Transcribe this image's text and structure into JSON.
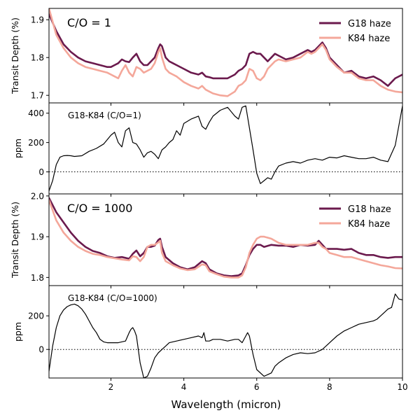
{
  "chart_data": [
    {
      "type": "line",
      "panel": "top",
      "annotation": "C/O = 1",
      "ylabel": "Transit Depth (%)",
      "xlim": [
        0.3,
        10.0
      ],
      "ylim": [
        1.68,
        1.93
      ],
      "yticks": [
        "1.7",
        "1.8",
        "1.9"
      ],
      "legend_position": "top-right",
      "series": [
        {
          "name": "G18 haze",
          "color": "#6b1a4d",
          "x": [
            0.3,
            0.5,
            0.7,
            0.9,
            1.1,
            1.3,
            1.5,
            1.7,
            1.9,
            2.0,
            2.1,
            2.2,
            2.3,
            2.4,
            2.5,
            2.6,
            2.7,
            2.8,
            2.9,
            3.0,
            3.1,
            3.2,
            3.3,
            3.35,
            3.4,
            3.5,
            3.6,
            3.7,
            3.8,
            4.0,
            4.2,
            4.4,
            4.5,
            4.6,
            4.7,
            4.8,
            5.0,
            5.2,
            5.4,
            5.5,
            5.6,
            5.7,
            5.8,
            5.9,
            6.0,
            6.1,
            6.2,
            6.3,
            6.4,
            6.5,
            6.6,
            6.8,
            7.0,
            7.2,
            7.4,
            7.5,
            7.6,
            7.7,
            7.8,
            7.9,
            8.0,
            8.2,
            8.4,
            8.6,
            8.8,
            9.0,
            9.2,
            9.4,
            9.6,
            9.8,
            10.0
          ],
          "y": [
            1.915,
            1.87,
            1.835,
            1.815,
            1.8,
            1.79,
            1.785,
            1.78,
            1.775,
            1.775,
            1.78,
            1.785,
            1.795,
            1.79,
            1.788,
            1.8,
            1.81,
            1.79,
            1.78,
            1.78,
            1.79,
            1.8,
            1.825,
            1.835,
            1.83,
            1.8,
            1.79,
            1.785,
            1.78,
            1.77,
            1.76,
            1.755,
            1.76,
            1.75,
            1.748,
            1.745,
            1.745,
            1.745,
            1.755,
            1.765,
            1.77,
            1.78,
            1.81,
            1.815,
            1.81,
            1.81,
            1.8,
            1.79,
            1.8,
            1.81,
            1.805,
            1.795,
            1.8,
            1.81,
            1.82,
            1.815,
            1.82,
            1.83,
            1.84,
            1.825,
            1.8,
            1.78,
            1.76,
            1.765,
            1.75,
            1.745,
            1.75,
            1.74,
            1.725,
            1.745,
            1.755
          ]
        },
        {
          "name": "K84 haze",
          "color": "#f4a79a",
          "x": [
            0.3,
            0.5,
            0.7,
            0.9,
            1.1,
            1.3,
            1.5,
            1.7,
            1.9,
            2.0,
            2.1,
            2.2,
            2.3,
            2.4,
            2.5,
            2.6,
            2.7,
            2.8,
            2.9,
            3.0,
            3.1,
            3.2,
            3.3,
            3.35,
            3.4,
            3.5,
            3.6,
            3.7,
            3.8,
            4.0,
            4.2,
            4.4,
            4.5,
            4.6,
            4.7,
            4.8,
            5.0,
            5.2,
            5.4,
            5.5,
            5.6,
            5.7,
            5.8,
            5.9,
            6.0,
            6.1,
            6.2,
            6.3,
            6.4,
            6.5,
            6.6,
            6.8,
            7.0,
            7.2,
            7.4,
            7.5,
            7.6,
            7.7,
            7.8,
            7.9,
            8.0,
            8.2,
            8.4,
            8.6,
            8.8,
            9.0,
            9.2,
            9.4,
            9.6,
            9.8,
            10.0
          ],
          "y": [
            1.93,
            1.86,
            1.825,
            1.8,
            1.785,
            1.775,
            1.77,
            1.765,
            1.76,
            1.755,
            1.75,
            1.745,
            1.765,
            1.78,
            1.76,
            1.75,
            1.775,
            1.77,
            1.76,
            1.765,
            1.77,
            1.785,
            1.815,
            1.825,
            1.8,
            1.77,
            1.76,
            1.755,
            1.75,
            1.735,
            1.725,
            1.718,
            1.725,
            1.715,
            1.71,
            1.705,
            1.7,
            1.698,
            1.71,
            1.725,
            1.73,
            1.74,
            1.77,
            1.765,
            1.745,
            1.74,
            1.75,
            1.77,
            1.78,
            1.79,
            1.795,
            1.79,
            1.795,
            1.8,
            1.815,
            1.81,
            1.815,
            1.825,
            1.835,
            1.82,
            1.795,
            1.775,
            1.76,
            1.76,
            1.745,
            1.74,
            1.74,
            1.725,
            1.715,
            1.71,
            1.708
          ]
        }
      ]
    },
    {
      "type": "line",
      "panel": "top-difference",
      "annotation": "G18-K84 (C/O=1)",
      "ylabel": "ppm",
      "xlim": [
        0.3,
        10.0
      ],
      "ylim": [
        -150,
        470
      ],
      "yticks": [
        "0",
        "200",
        "400"
      ],
      "reference_line": 0,
      "series": [
        {
          "name": "G18-K84",
          "color": "#000000",
          "x": [
            0.3,
            0.4,
            0.5,
            0.6,
            0.7,
            0.8,
            0.9,
            1.0,
            1.2,
            1.4,
            1.6,
            1.8,
            2.0,
            2.1,
            2.2,
            2.3,
            2.4,
            2.5,
            2.6,
            2.7,
            2.8,
            2.9,
            3.0,
            3.1,
            3.2,
            3.3,
            3.4,
            3.5,
            3.6,
            3.7,
            3.8,
            3.9,
            4.0,
            4.2,
            4.4,
            4.5,
            4.6,
            4.7,
            4.8,
            5.0,
            5.2,
            5.4,
            5.5,
            5.6,
            5.7,
            5.8,
            5.9,
            6.0,
            6.1,
            6.2,
            6.3,
            6.4,
            6.5,
            6.6,
            6.8,
            7.0,
            7.2,
            7.4,
            7.6,
            7.8,
            8.0,
            8.2,
            8.4,
            8.6,
            8.8,
            9.0,
            9.2,
            9.4,
            9.6,
            9.8,
            10.0
          ],
          "y": [
            -130,
            -60,
            50,
            100,
            110,
            112,
            110,
            105,
            110,
            140,
            160,
            190,
            250,
            270,
            200,
            170,
            280,
            300,
            200,
            190,
            150,
            100,
            130,
            140,
            120,
            90,
            150,
            170,
            200,
            220,
            280,
            250,
            330,
            360,
            380,
            310,
            290,
            340,
            380,
            420,
            440,
            380,
            360,
            440,
            450,
            300,
            150,
            -10,
            -80,
            -60,
            -40,
            -50,
            0,
            40,
            60,
            70,
            60,
            80,
            90,
            80,
            100,
            95,
            110,
            100,
            90,
            90,
            100,
            80,
            70,
            180,
            450
          ]
        }
      ]
    },
    {
      "type": "line",
      "panel": "bottom",
      "annotation": "C/O = 1000",
      "ylabel": "Transit Depth (%)",
      "xlim": [
        0.3,
        10.0
      ],
      "ylim": [
        1.78,
        2.005
      ],
      "yticks": [
        "1.8",
        "1.9",
        "2.0"
      ],
      "legend_position": "top-right",
      "series": [
        {
          "name": "G18 haze",
          "color": "#6b1a4d",
          "x": [
            0.3,
            0.5,
            0.7,
            0.9,
            1.1,
            1.3,
            1.5,
            1.7,
            1.9,
            2.1,
            2.3,
            2.5,
            2.6,
            2.7,
            2.8,
            2.9,
            3.0,
            3.1,
            3.2,
            3.3,
            3.35,
            3.4,
            3.5,
            3.7,
            3.9,
            4.1,
            4.3,
            4.5,
            4.6,
            4.7,
            4.9,
            5.1,
            5.3,
            5.5,
            5.6,
            5.7,
            5.8,
            5.9,
            6.0,
            6.1,
            6.2,
            6.4,
            6.6,
            6.8,
            7.0,
            7.2,
            7.4,
            7.6,
            7.7,
            7.8,
            7.9,
            8.0,
            8.2,
            8.4,
            8.6,
            8.8,
            9.0,
            9.2,
            9.4,
            9.6,
            9.8,
            10.0
          ],
          "y": [
            1.995,
            1.96,
            1.935,
            1.91,
            1.89,
            1.875,
            1.865,
            1.86,
            1.852,
            1.848,
            1.85,
            1.846,
            1.858,
            1.866,
            1.852,
            1.86,
            1.875,
            1.875,
            1.878,
            1.892,
            1.895,
            1.875,
            1.85,
            1.835,
            1.825,
            1.82,
            1.825,
            1.84,
            1.835,
            1.82,
            1.81,
            1.805,
            1.803,
            1.805,
            1.81,
            1.83,
            1.855,
            1.87,
            1.88,
            1.88,
            1.875,
            1.88,
            1.878,
            1.878,
            1.875,
            1.88,
            1.878,
            1.88,
            1.89,
            1.88,
            1.87,
            1.87,
            1.87,
            1.868,
            1.87,
            1.86,
            1.855,
            1.855,
            1.85,
            1.848,
            1.85,
            1.85
          ]
        },
        {
          "name": "K84 haze",
          "color": "#f4a79a",
          "x": [
            0.3,
            0.5,
            0.7,
            0.9,
            1.1,
            1.3,
            1.5,
            1.7,
            1.9,
            2.1,
            2.3,
            2.5,
            2.6,
            2.7,
            2.8,
            2.9,
            3.0,
            3.1,
            3.2,
            3.3,
            3.35,
            3.4,
            3.5,
            3.7,
            3.9,
            4.1,
            4.3,
            4.5,
            4.6,
            4.7,
            4.9,
            5.1,
            5.3,
            5.5,
            5.6,
            5.7,
            5.8,
            5.9,
            6.0,
            6.1,
            6.2,
            6.4,
            6.6,
            6.8,
            7.0,
            7.2,
            7.4,
            7.6,
            7.7,
            7.8,
            7.9,
            8.0,
            8.2,
            8.4,
            8.6,
            8.8,
            9.0,
            9.2,
            9.4,
            9.6,
            9.8,
            10.0
          ],
          "y": [
            1.99,
            1.94,
            1.91,
            1.89,
            1.875,
            1.865,
            1.858,
            1.855,
            1.85,
            1.847,
            1.844,
            1.842,
            1.852,
            1.85,
            1.84,
            1.85,
            1.875,
            1.88,
            1.88,
            1.886,
            1.89,
            1.86,
            1.84,
            1.83,
            1.822,
            1.818,
            1.82,
            1.832,
            1.83,
            1.815,
            1.808,
            1.802,
            1.8,
            1.8,
            1.805,
            1.825,
            1.86,
            1.88,
            1.895,
            1.9,
            1.9,
            1.895,
            1.885,
            1.88,
            1.88,
            1.88,
            1.88,
            1.885,
            1.885,
            1.875,
            1.87,
            1.86,
            1.855,
            1.85,
            1.85,
            1.845,
            1.84,
            1.835,
            1.83,
            1.827,
            1.823,
            1.822
          ]
        }
      ]
    },
    {
      "type": "line",
      "panel": "bottom-difference",
      "annotation": "G18-K84 (C/O=1000)",
      "ylabel": "ppm",
      "xlabel": "Wavelength (micron)",
      "xlim": [
        0.3,
        10.0
      ],
      "xticks": [
        "2",
        "4",
        "6",
        "8",
        "10"
      ],
      "ylim": [
        -170,
        380
      ],
      "yticks": [
        "0",
        "200"
      ],
      "reference_line": 0,
      "series": [
        {
          "name": "G18-K84",
          "color": "#000000",
          "x": [
            0.3,
            0.4,
            0.5,
            0.6,
            0.7,
            0.8,
            0.9,
            1.0,
            1.1,
            1.2,
            1.3,
            1.4,
            1.5,
            1.6,
            1.7,
            1.8,
            1.9,
            2.0,
            2.2,
            2.4,
            2.5,
            2.55,
            2.6,
            2.65,
            2.7,
            2.8,
            2.9,
            3.0,
            3.1,
            3.2,
            3.3,
            3.4,
            3.5,
            3.6,
            3.8,
            4.0,
            4.2,
            4.4,
            4.5,
            4.55,
            4.6,
            4.7,
            4.8,
            5.0,
            5.2,
            5.4,
            5.5,
            5.6,
            5.7,
            5.75,
            5.8,
            5.9,
            6.0,
            6.2,
            6.4,
            6.5,
            6.6,
            6.8,
            7.0,
            7.2,
            7.4,
            7.6,
            7.8,
            8.0,
            8.2,
            8.4,
            8.6,
            8.8,
            9.0,
            9.2,
            9.3,
            9.4,
            9.5,
            9.6,
            9.7,
            9.8,
            9.9,
            10.0
          ],
          "y": [
            -130,
            20,
            130,
            200,
            235,
            255,
            265,
            270,
            260,
            240,
            210,
            170,
            130,
            100,
            60,
            45,
            40,
            40,
            40,
            50,
            100,
            120,
            130,
            110,
            80,
            -80,
            -170,
            -160,
            -110,
            -50,
            -20,
            0,
            20,
            40,
            50,
            60,
            70,
            80,
            70,
            100,
            50,
            50,
            60,
            60,
            50,
            60,
            60,
            40,
            80,
            100,
            80,
            -30,
            -120,
            -160,
            -140,
            -100,
            -80,
            -50,
            -30,
            -20,
            -25,
            -20,
            0,
            40,
            80,
            110,
            130,
            150,
            160,
            170,
            180,
            200,
            220,
            240,
            250,
            330,
            300,
            295
          ]
        }
      ]
    }
  ]
}
